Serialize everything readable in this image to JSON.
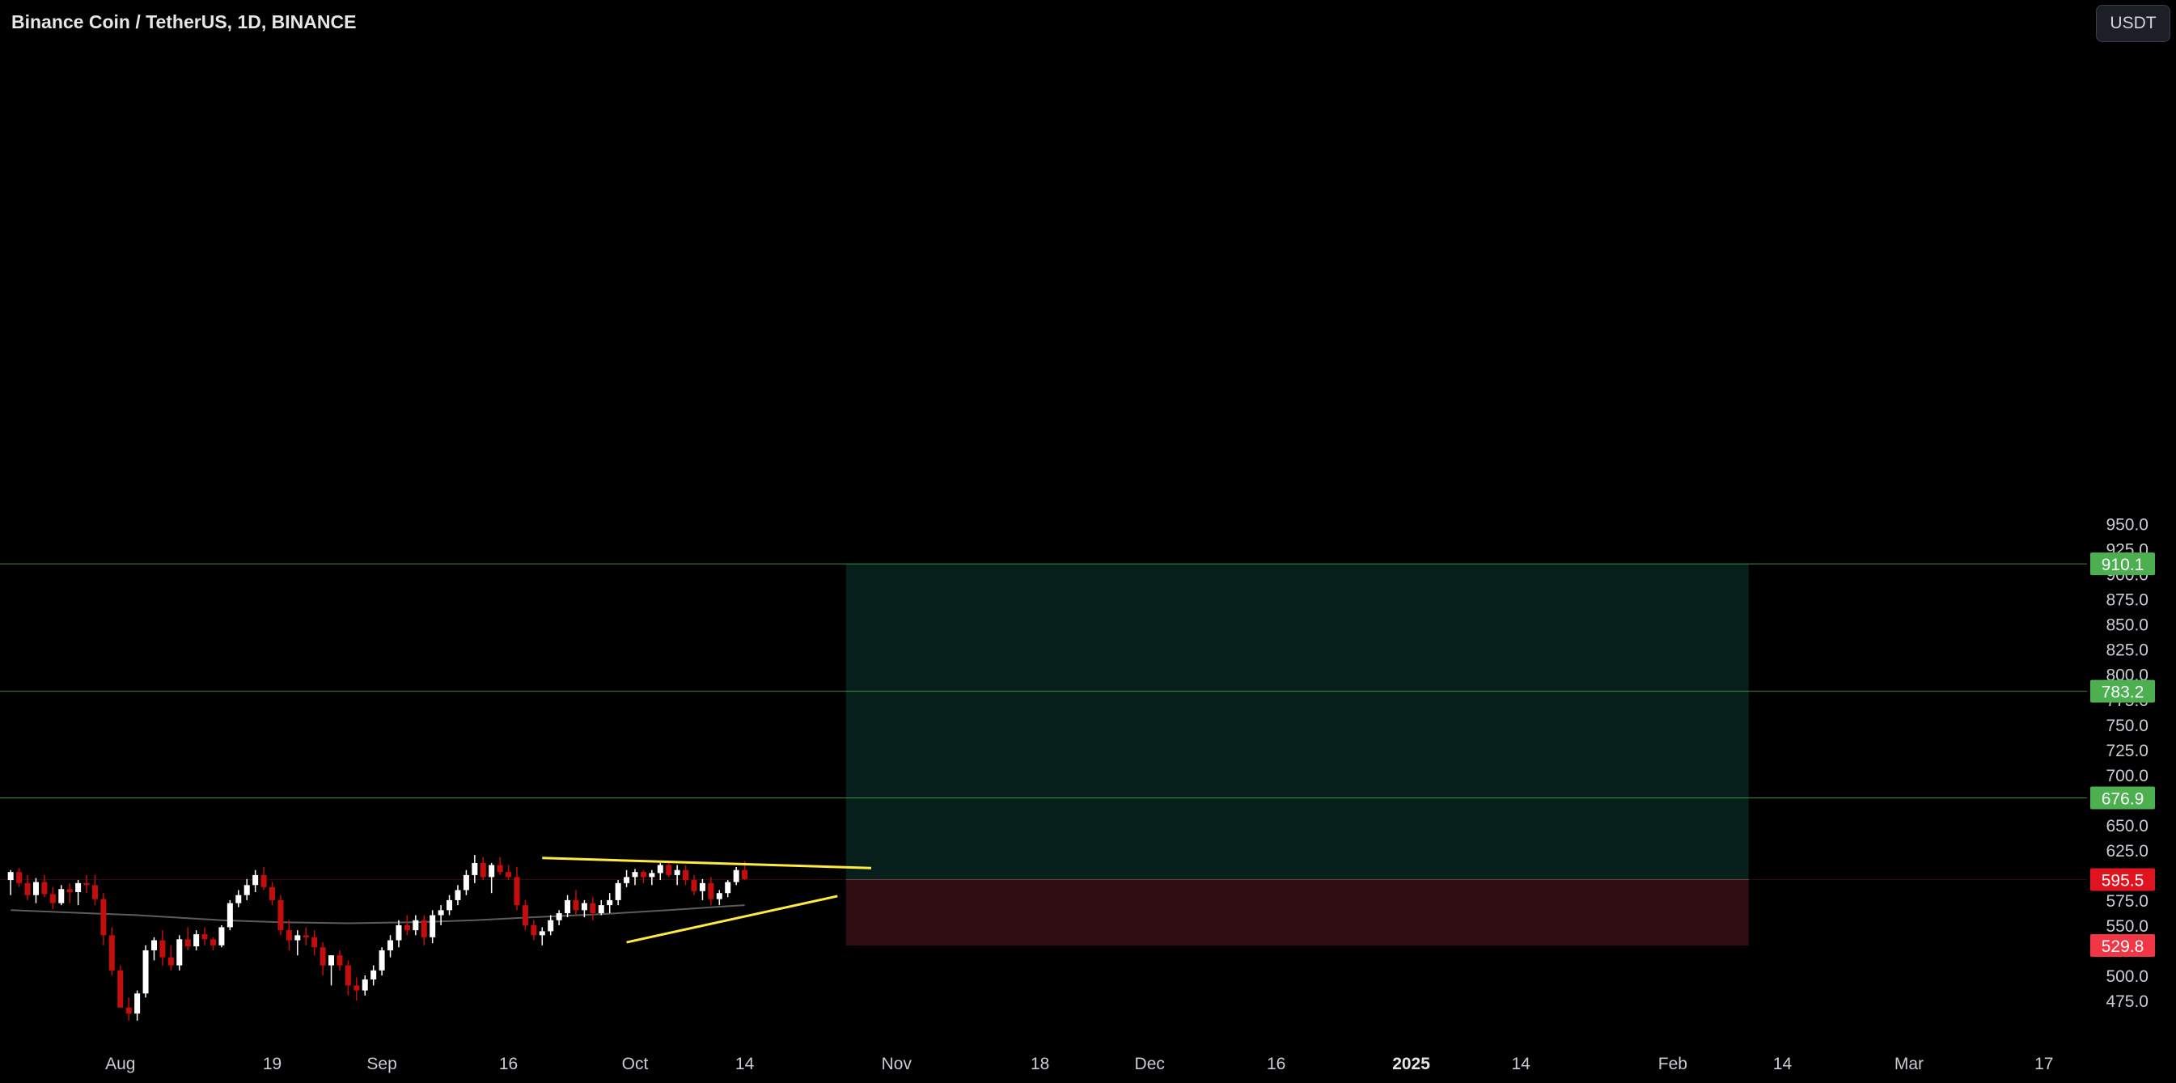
{
  "header": {
    "title": "Binance Coin / TetherUS, 1D, BINANCE",
    "currency_button": "USDT"
  },
  "colors": {
    "background": "#000000",
    "up_candle": "#ffffff",
    "down_candle": "#c40d0d",
    "trendline": "#ffeb3b",
    "target_zone": "#061f1b",
    "stop_zone": "#2f0e13",
    "target_line": "#4caf50",
    "moving_average": "#5c5c5c"
  },
  "chart_data": {
    "type": "candlestick",
    "ylim": [
      460,
      960
    ],
    "y_ticks": [
      475.0,
      500.0,
      525.0,
      550.0,
      575.0,
      600.0,
      625.0,
      650.0,
      675.0,
      700.0,
      725.0,
      750.0,
      775.0,
      800.0,
      825.0,
      850.0,
      875.0,
      900.0,
      925.0,
      950.0
    ],
    "y_ticks_visible": [
      "475.0",
      "500.0",
      "550.0",
      "575.0",
      "625.0",
      "650.0",
      "700.0",
      "725.0",
      "750.0",
      "800.0",
      "825.0",
      "850.0",
      "875.0",
      "900.0",
      "925.0"
    ],
    "x_ticks": [
      {
        "label": "Aug",
        "date": "2024-08-01",
        "bold": false
      },
      {
        "label": "19",
        "date": "2024-08-19",
        "bold": false
      },
      {
        "label": "Sep",
        "date": "2024-09-01",
        "bold": false
      },
      {
        "label": "16",
        "date": "2024-09-16",
        "bold": false
      },
      {
        "label": "Oct",
        "date": "2024-10-01",
        "bold": false
      },
      {
        "label": "14",
        "date": "2024-10-14",
        "bold": false
      },
      {
        "label": "Nov",
        "date": "2024-11-01",
        "bold": false
      },
      {
        "label": "18",
        "date": "2024-11-18",
        "bold": false
      },
      {
        "label": "Dec",
        "date": "2024-12-01",
        "bold": false
      },
      {
        "label": "16",
        "date": "2024-12-16",
        "bold": false
      },
      {
        "label": "2025",
        "date": "2025-01-01",
        "bold": true
      },
      {
        "label": "14",
        "date": "2025-01-14",
        "bold": false
      },
      {
        "label": "Feb",
        "date": "2025-02-01",
        "bold": false
      },
      {
        "label": "14",
        "date": "2025-02-14",
        "bold": false
      },
      {
        "label": "Mar",
        "date": "2025-03-01",
        "bold": false
      },
      {
        "label": "17",
        "date": "2025-03-17",
        "bold": false
      }
    ],
    "candles_start_date": "2024-07-19",
    "candles": [
      [
        595,
        605,
        580,
        603
      ],
      [
        603,
        607,
        588,
        592
      ],
      [
        592,
        600,
        575,
        580
      ],
      [
        580,
        597,
        572,
        593
      ],
      [
        593,
        600,
        578,
        581
      ],
      [
        581,
        588,
        566,
        572
      ],
      [
        572,
        590,
        570,
        586
      ],
      [
        586,
        592,
        572,
        583
      ],
      [
        583,
        595,
        570,
        592
      ],
      [
        592,
        600,
        582,
        590
      ],
      [
        590,
        600,
        570,
        576
      ],
      [
        576,
        582,
        530,
        540
      ],
      [
        540,
        548,
        500,
        505
      ],
      [
        505,
        510,
        470,
        468
      ],
      [
        468,
        478,
        455,
        462
      ],
      [
        462,
        485,
        455,
        482
      ],
      [
        482,
        530,
        478,
        525
      ],
      [
        525,
        538,
        515,
        535
      ],
      [
        535,
        545,
        510,
        518
      ],
      [
        518,
        530,
        505,
        510
      ],
      [
        510,
        540,
        505,
        536
      ],
      [
        536,
        548,
        525,
        529
      ],
      [
        529,
        545,
        525,
        541
      ],
      [
        541,
        548,
        530,
        536
      ],
      [
        536,
        538,
        525,
        530
      ],
      [
        530,
        550,
        528,
        548
      ],
      [
        548,
        575,
        545,
        572
      ],
      [
        572,
        585,
        568,
        580
      ],
      [
        580,
        596,
        575,
        590
      ],
      [
        590,
        605,
        583,
        600
      ],
      [
        600,
        608,
        585,
        588
      ],
      [
        588,
        593,
        570,
        575
      ],
      [
        575,
        580,
        540,
        545
      ],
      [
        545,
        555,
        525,
        535
      ],
      [
        535,
        545,
        520,
        540
      ],
      [
        540,
        548,
        530,
        538
      ],
      [
        538,
        545,
        520,
        528
      ],
      [
        528,
        533,
        500,
        510
      ],
      [
        510,
        520,
        490,
        520
      ],
      [
        520,
        525,
        505,
        510
      ],
      [
        510,
        515,
        480,
        490
      ],
      [
        490,
        498,
        475,
        485
      ],
      [
        485,
        500,
        480,
        496
      ],
      [
        496,
        510,
        490,
        505
      ],
      [
        505,
        528,
        500,
        525
      ],
      [
        525,
        540,
        518,
        535
      ],
      [
        535,
        555,
        528,
        550
      ],
      [
        550,
        560,
        540,
        545
      ],
      [
        545,
        560,
        540,
        555
      ],
      [
        555,
        560,
        530,
        538
      ],
      [
        538,
        565,
        532,
        560
      ],
      [
        560,
        570,
        550,
        565
      ],
      [
        565,
        580,
        560,
        575
      ],
      [
        575,
        590,
        570,
        585
      ],
      [
        585,
        605,
        580,
        600
      ],
      [
        600,
        620,
        592,
        612
      ],
      [
        612,
        618,
        595,
        598
      ],
      [
        598,
        612,
        582,
        610
      ],
      [
        610,
        618,
        600,
        603
      ],
      [
        603,
        610,
        595,
        598
      ],
      [
        598,
        608,
        565,
        570
      ],
      [
        570,
        575,
        545,
        550
      ],
      [
        550,
        555,
        535,
        540
      ],
      [
        540,
        548,
        530,
        544
      ],
      [
        544,
        560,
        540,
        555
      ],
      [
        555,
        565,
        550,
        562
      ],
      [
        562,
        580,
        558,
        575
      ],
      [
        575,
        585,
        560,
        565
      ],
      [
        565,
        575,
        558,
        572
      ],
      [
        572,
        578,
        555,
        562
      ],
      [
        562,
        575,
        560,
        570
      ],
      [
        570,
        582,
        562,
        575
      ],
      [
        575,
        595,
        570,
        592
      ],
      [
        592,
        605,
        588,
        598
      ],
      [
        598,
        606,
        590,
        603
      ],
      [
        603,
        605,
        592,
        598
      ],
      [
        598,
        605,
        590,
        602
      ],
      [
        602,
        612,
        595,
        610
      ],
      [
        610,
        614,
        598,
        600
      ],
      [
        600,
        610,
        590,
        605
      ],
      [
        605,
        610,
        590,
        595
      ],
      [
        595,
        600,
        580,
        584
      ],
      [
        584,
        596,
        575,
        592
      ],
      [
        592,
        598,
        570,
        576
      ],
      [
        576,
        585,
        570,
        582
      ],
      [
        582,
        595,
        578,
        593
      ],
      [
        593,
        608,
        590,
        605
      ],
      [
        605,
        614,
        595,
        596
      ]
    ],
    "moving_average": [
      [
        0,
        565
      ],
      [
        15,
        560
      ],
      [
        25,
        555
      ],
      [
        32,
        553
      ],
      [
        40,
        552
      ],
      [
        48,
        553
      ],
      [
        55,
        555
      ],
      [
        62,
        558
      ],
      [
        70,
        561
      ],
      [
        78,
        565
      ],
      [
        85,
        569
      ],
      [
        87,
        570
      ]
    ],
    "trendlines": [
      {
        "from": [
          "2024-09-20",
          617.0
        ],
        "to": [
          "2024-10-29",
          607.0
        ]
      },
      {
        "from": [
          "2024-09-30",
          533.0
        ],
        "to": [
          "2024-10-25",
          579.0
        ]
      }
    ],
    "position": {
      "start_date": "2024-10-26",
      "end_date": "2025-02-10",
      "entry": 595.5,
      "stop": 529.8,
      "targets": [
        676.9,
        783.2,
        910.1
      ]
    },
    "price_labels": [
      {
        "value": 910.1,
        "text": "910.1",
        "color": "#4caf50"
      },
      {
        "value": 783.2,
        "text": "783.2",
        "color": "#4caf50"
      },
      {
        "value": 676.9,
        "text": "676.9",
        "color": "#4caf50"
      },
      {
        "value": 595.5,
        "text": "595.5",
        "color": "#e0141e"
      },
      {
        "value": 529.8,
        "text": "529.8",
        "color": "#f23645"
      }
    ]
  }
}
